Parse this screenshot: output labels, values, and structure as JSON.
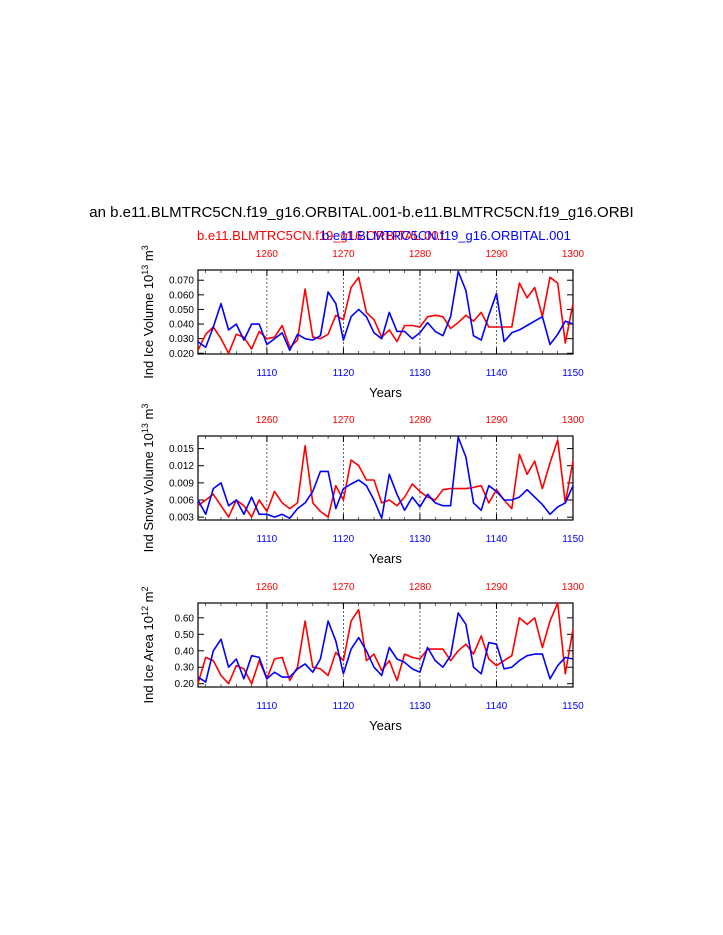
{
  "header": {
    "title": "an b.e11.BLMTRC5CN.f19_g16.ORBITAL.001-b.e11.BLMTRC5CN.f19_g16.ORBI",
    "subtitle_red": "b.e11.BLMTRC5CN.f19_g16.ORBITAL.001",
    "subtitle_blue": "b.e11.BLMTRC5CN.f19_g16.ORBITAL.001"
  },
  "colors": {
    "red": "#ff0000",
    "blue": "#0000ff",
    "axis": "#000000"
  },
  "chart_data": [
    {
      "type": "line",
      "ylabel": "Ind Ice Volume 10^13 m^3",
      "xlabel": "Years",
      "bottom_xlim": [
        1101,
        1150
      ],
      "top_xlim": [
        1251,
        1300
      ],
      "bottom_ticks": [
        "1110",
        "1120",
        "1130",
        "1140",
        "1150"
      ],
      "top_ticks": [
        "1260",
        "1270",
        "1280",
        "1290",
        "1300"
      ],
      "ylim": [
        0.0195,
        0.077
      ],
      "y_ticks": [
        {
          "v": 0.02,
          "label": "0.020"
        },
        {
          "v": 0.03,
          "label": "0.030"
        },
        {
          "v": 0.04,
          "label": "0.040"
        },
        {
          "v": 0.05,
          "label": "0.050"
        },
        {
          "v": 0.06,
          "label": "0.060"
        },
        {
          "v": 0.07,
          "label": "0.070"
        }
      ],
      "series": [
        {
          "name": "red",
          "values": [
            0.022,
            0.033,
            0.038,
            0.03,
            0.02,
            0.033,
            0.031,
            0.023,
            0.035,
            0.03,
            0.031,
            0.039,
            0.024,
            0.029,
            0.064,
            0.031,
            0.03,
            0.033,
            0.046,
            0.043,
            0.065,
            0.072,
            0.048,
            0.043,
            0.031,
            0.036,
            0.028,
            0.039,
            0.039,
            0.038,
            0.045,
            0.046,
            0.045,
            0.037,
            0.041,
            0.046,
            0.042,
            0.048,
            0.038,
            0.038,
            0.038,
            0.038,
            0.068,
            0.058,
            0.065,
            0.045,
            0.072,
            0.068,
            0.027,
            0.054
          ]
        },
        {
          "name": "blue",
          "values": [
            0.028,
            0.024,
            0.038,
            0.054,
            0.036,
            0.04,
            0.029,
            0.04,
            0.04,
            0.026,
            0.03,
            0.034,
            0.022,
            0.033,
            0.03,
            0.029,
            0.032,
            0.062,
            0.054,
            0.029,
            0.045,
            0.05,
            0.045,
            0.034,
            0.03,
            0.048,
            0.035,
            0.035,
            0.03,
            0.034,
            0.041,
            0.035,
            0.032,
            0.045,
            0.076,
            0.063,
            0.032,
            0.029,
            0.046,
            0.061,
            0.028,
            0.034,
            0.036,
            0.039,
            0.042,
            0.045,
            0.026,
            0.033,
            0.042,
            0.04
          ]
        }
      ]
    },
    {
      "type": "line",
      "ylabel": "Ind Snow Volume 10^13 m^3",
      "xlabel": "Years",
      "bottom_xlim": [
        1101,
        1150
      ],
      "top_xlim": [
        1251,
        1300
      ],
      "bottom_ticks": [
        "1110",
        "1120",
        "1130",
        "1140",
        "1150"
      ],
      "top_ticks": [
        "1260",
        "1270",
        "1280",
        "1290",
        "1300"
      ],
      "ylim": [
        0.0025,
        0.0172
      ],
      "y_ticks": [
        {
          "v": 0.003,
          "label": "0.003"
        },
        {
          "v": 0.006,
          "label": "0.006"
        },
        {
          "v": 0.009,
          "label": "0.009"
        },
        {
          "v": 0.012,
          "label": "0.012"
        },
        {
          "v": 0.015,
          "label": "0.015"
        }
      ],
      "series": [
        {
          "name": "red",
          "values": [
            0.005,
            0.006,
            0.007,
            0.005,
            0.003,
            0.006,
            0.005,
            0.003,
            0.006,
            0.004,
            0.0075,
            0.0055,
            0.0045,
            0.0055,
            0.0155,
            0.0055,
            0.004,
            0.003,
            0.0085,
            0.006,
            0.013,
            0.012,
            0.0095,
            0.0095,
            0.0055,
            0.006,
            0.005,
            0.0065,
            0.0088,
            0.0075,
            0.0065,
            0.006,
            0.0078,
            0.008,
            0.008,
            0.008,
            0.0082,
            0.0085,
            0.0055,
            0.0078,
            0.006,
            0.0045,
            0.014,
            0.0105,
            0.0128,
            0.008,
            0.0125,
            0.0165,
            0.0055,
            0.0128
          ]
        },
        {
          "name": "blue",
          "values": [
            0.006,
            0.0035,
            0.008,
            0.009,
            0.005,
            0.006,
            0.0035,
            0.0065,
            0.0035,
            0.0035,
            0.003,
            0.0035,
            0.0028,
            0.0045,
            0.0055,
            0.0075,
            0.011,
            0.011,
            0.0045,
            0.008,
            0.0088,
            0.0095,
            0.0085,
            0.006,
            0.0028,
            0.0105,
            0.007,
            0.0042,
            0.0065,
            0.0048,
            0.007,
            0.0055,
            0.005,
            0.005,
            0.017,
            0.0135,
            0.0055,
            0.0042,
            0.0085,
            0.0075,
            0.006,
            0.006,
            0.0065,
            0.0078,
            0.0065,
            0.0052,
            0.0035,
            0.0048,
            0.0055,
            0.0085
          ]
        }
      ]
    },
    {
      "type": "line",
      "ylabel": "Ind Ice Area 10^12 m^2",
      "xlabel": "Years",
      "bottom_xlim": [
        1101,
        1150
      ],
      "top_xlim": [
        1251,
        1300
      ],
      "bottom_ticks": [
        "1110",
        "1120",
        "1130",
        "1140",
        "1150"
      ],
      "top_ticks": [
        "1260",
        "1270",
        "1280",
        "1290",
        "1300"
      ],
      "ylim": [
        0.18,
        0.69
      ],
      "y_ticks": [
        {
          "v": 0.2,
          "label": "0.20"
        },
        {
          "v": 0.3,
          "label": "0.30"
        },
        {
          "v": 0.4,
          "label": "0.40"
        },
        {
          "v": 0.5,
          "label": "0.50"
        },
        {
          "v": 0.6,
          "label": "0.60"
        }
      ],
      "series": [
        {
          "name": "red",
          "values": [
            0.2,
            0.36,
            0.34,
            0.25,
            0.2,
            0.31,
            0.29,
            0.2,
            0.34,
            0.23,
            0.35,
            0.36,
            0.22,
            0.3,
            0.58,
            0.3,
            0.29,
            0.25,
            0.39,
            0.34,
            0.58,
            0.65,
            0.34,
            0.38,
            0.28,
            0.34,
            0.22,
            0.38,
            0.36,
            0.35,
            0.41,
            0.41,
            0.41,
            0.34,
            0.4,
            0.44,
            0.38,
            0.49,
            0.35,
            0.31,
            0.34,
            0.37,
            0.6,
            0.56,
            0.6,
            0.42,
            0.58,
            0.69,
            0.26,
            0.53
          ]
        },
        {
          "name": "blue",
          "values": [
            0.24,
            0.21,
            0.4,
            0.47,
            0.3,
            0.35,
            0.23,
            0.37,
            0.36,
            0.23,
            0.27,
            0.24,
            0.24,
            0.29,
            0.32,
            0.27,
            0.35,
            0.58,
            0.46,
            0.26,
            0.41,
            0.48,
            0.4,
            0.3,
            0.25,
            0.42,
            0.35,
            0.33,
            0.29,
            0.27,
            0.42,
            0.34,
            0.3,
            0.37,
            0.63,
            0.56,
            0.3,
            0.26,
            0.45,
            0.44,
            0.29,
            0.3,
            0.34,
            0.37,
            0.38,
            0.38,
            0.23,
            0.31,
            0.36,
            0.35
          ]
        }
      ]
    }
  ]
}
